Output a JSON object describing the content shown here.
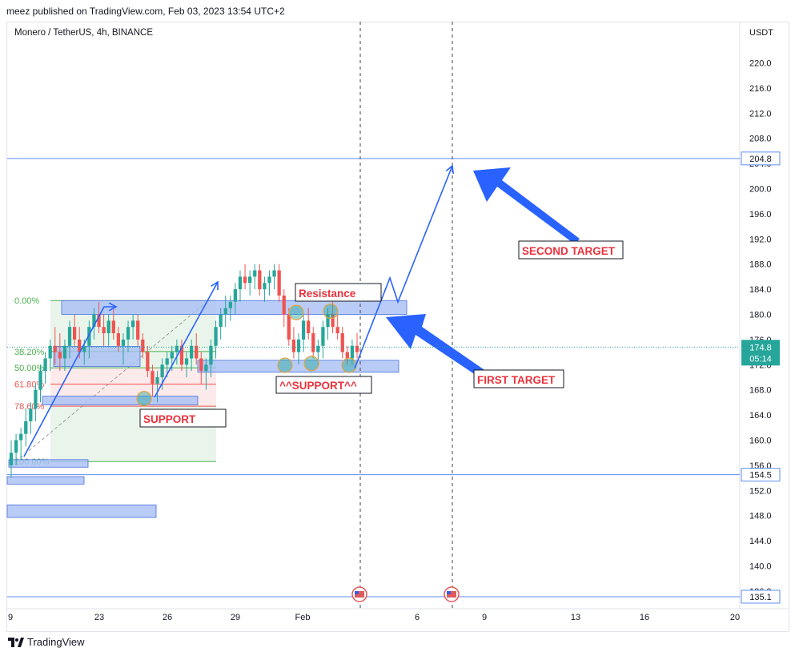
{
  "header": {
    "publisher": "meez published on TradingView.com, Feb 03, 2023 13:54 UTC+2"
  },
  "symbol_line": "Monero / TetherUS, 4h, BINANCE",
  "footer": {
    "brand": "TradingView",
    "logo_icon": "tradingview-logo-icon"
  },
  "colors": {
    "up": "#26a69a",
    "down": "#ef5350",
    "zone_fill": "#a8bff5",
    "zone_border": "#4a6fe0",
    "arrow": "#2962ff",
    "fib_green": "#4caf50",
    "fib_red": "#ef5350",
    "note_text": "#e8323c"
  },
  "chart_data": {
    "type": "candlestick",
    "y_axis_label": "USDT",
    "ylim": [
      133.5,
      224
    ],
    "yticks": [
      "220.0",
      "216.0",
      "212.0",
      "208.0",
      "204.0",
      "200.0",
      "196.0",
      "192.0",
      "188.0",
      "184.0",
      "180.0",
      "176.0",
      "172.0",
      "168.0",
      "164.0",
      "160.0",
      "156.0",
      "152.0",
      "148.0",
      "144.0",
      "140.0",
      "136.0"
    ],
    "x_ticks": [
      "9",
      "23",
      "26",
      "29",
      "Feb",
      "6",
      "9",
      "13",
      "16",
      "20"
    ],
    "last_price": "174.8",
    "countdown": "05:14",
    "horizontal_levels": [
      {
        "price": 204.8,
        "label": "204.8"
      },
      {
        "price": 154.5,
        "label": "154.5"
      },
      {
        "price": 135.1,
        "label": "135.1"
      }
    ],
    "fib_levels": [
      {
        "label": "0.00%",
        "price": 182.2
      },
      {
        "label": "38.20%",
        "price": 174.1
      },
      {
        "label": "50.00%",
        "price": 171.5
      },
      {
        "label": "61.80%",
        "price": 168.9
      },
      {
        "label": "78.60%",
        "price": 165.4
      },
      {
        "label": "100.00%",
        "price": 156.6
      }
    ],
    "annotations": {
      "resistance": "Resistance",
      "support_center": "^^SUPPORT^^",
      "support_left": "SUPPORT",
      "first_target": "FIRST TARGET",
      "second_target": "SECOND TARGET"
    },
    "candles": [
      [
        156,
        160,
        154,
        158
      ],
      [
        158,
        161,
        156,
        160
      ],
      [
        160,
        162,
        157,
        161
      ],
      [
        161,
        165,
        159,
        163
      ],
      [
        163,
        166,
        161,
        165
      ],
      [
        165,
        169,
        163,
        168
      ],
      [
        168,
        172,
        166,
        171
      ],
      [
        171,
        174,
        169,
        173
      ],
      [
        173,
        176,
        171,
        175
      ],
      [
        175,
        178,
        172,
        174
      ],
      [
        174,
        177,
        171,
        173
      ],
      [
        173,
        176,
        171,
        175
      ],
      [
        175,
        179,
        173,
        178
      ],
      [
        178,
        180,
        175,
        176
      ],
      [
        176,
        178,
        173,
        174
      ],
      [
        174,
        176,
        172,
        175
      ],
      [
        175,
        179,
        173,
        178
      ],
      [
        178,
        181,
        176,
        180
      ],
      [
        180,
        182,
        177,
        178
      ],
      [
        178,
        180,
        175,
        177
      ],
      [
        177,
        180,
        175,
        179
      ],
      [
        179,
        181,
        176,
        177
      ],
      [
        177,
        178,
        174,
        175
      ],
      [
        175,
        177,
        172,
        176
      ],
      [
        176,
        179,
        174,
        178
      ],
      [
        178,
        180,
        176,
        179
      ],
      [
        179,
        180,
        175,
        176
      ],
      [
        176,
        177,
        173,
        174
      ],
      [
        174,
        175,
        170,
        171
      ],
      [
        171,
        172,
        167,
        169
      ],
      [
        169,
        171,
        166,
        170
      ],
      [
        170,
        173,
        168,
        172
      ],
      [
        172,
        174,
        170,
        173
      ],
      [
        173,
        175,
        171,
        174
      ],
      [
        174,
        176,
        172,
        175
      ],
      [
        175,
        176,
        171,
        172
      ],
      [
        172,
        174,
        170,
        173
      ],
      [
        173,
        176,
        171,
        175
      ],
      [
        175,
        177,
        172,
        173
      ],
      [
        173,
        174,
        169,
        171
      ],
      [
        171,
        173,
        168,
        172
      ],
      [
        172,
        176,
        170,
        175
      ],
      [
        175,
        179,
        173,
        178
      ],
      [
        178,
        181,
        176,
        180
      ],
      [
        180,
        183,
        178,
        181
      ],
      [
        181,
        183,
        179,
        182
      ],
      [
        182,
        185,
        180,
        184
      ],
      [
        184,
        187,
        182,
        186
      ],
      [
        186,
        188,
        184,
        185
      ],
      [
        185,
        187,
        183,
        186
      ],
      [
        186,
        188,
        184,
        187
      ],
      [
        187,
        188,
        183,
        184
      ],
      [
        184,
        186,
        182,
        185
      ],
      [
        185,
        187,
        183,
        186
      ],
      [
        186,
        188,
        184,
        187
      ],
      [
        187,
        188,
        182,
        183
      ],
      [
        183,
        184,
        178,
        180
      ],
      [
        180,
        181,
        175,
        176
      ],
      [
        176,
        178,
        173,
        174
      ],
      [
        174,
        177,
        172,
        176
      ],
      [
        176,
        180,
        174,
        179
      ],
      [
        179,
        181,
        176,
        177
      ],
      [
        177,
        178,
        173,
        174
      ],
      [
        174,
        176,
        172,
        175
      ],
      [
        175,
        179,
        173,
        178
      ],
      [
        178,
        181,
        176,
        180
      ],
      [
        180,
        182,
        177,
        178
      ],
      [
        178,
        180,
        176,
        177
      ],
      [
        177,
        178,
        173,
        174
      ],
      [
        174,
        175,
        172,
        173
      ],
      [
        173,
        176,
        172,
        175
      ],
      [
        175,
        177,
        173,
        174
      ]
    ]
  }
}
